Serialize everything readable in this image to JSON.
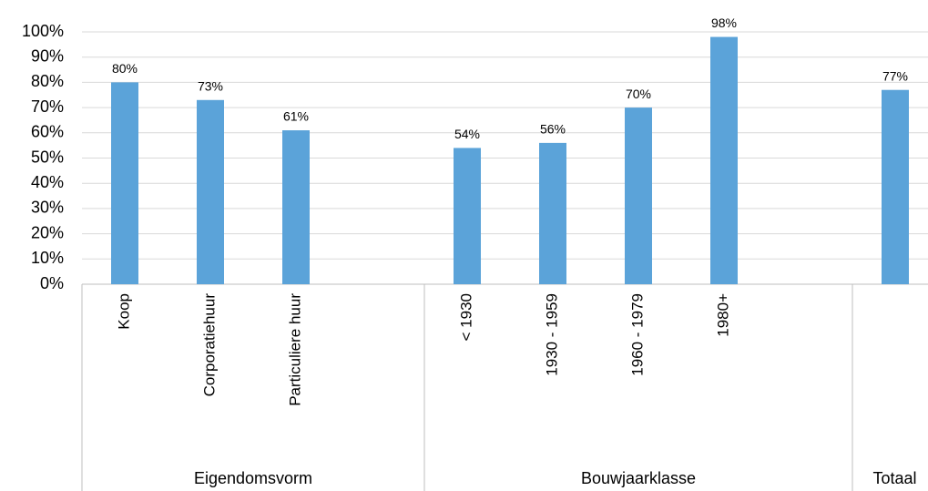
{
  "chart_data": {
    "type": "bar",
    "categories": [
      "Koop",
      "Corporatiehuur",
      "Particuliere huur",
      null,
      "< 1930",
      "1930 - 1959",
      "1960 - 1979",
      "1980+",
      null,
      null
    ],
    "values": [
      80,
      73,
      61,
      null,
      54,
      56,
      70,
      98,
      null,
      77
    ],
    "value_labels": [
      "80%",
      "73%",
      "61%",
      null,
      "54%",
      "56%",
      "70%",
      "98%",
      null,
      "77%"
    ],
    "groups": [
      {
        "name": "Eigendomsvorm",
        "count": 4
      },
      {
        "name": "Bouwjaarklasse",
        "count": 5
      },
      {
        "name": "Totaal",
        "count": 1
      }
    ],
    "color": "#5ba3d9",
    "ylim": [
      0,
      100
    ],
    "yticks": [
      {
        "value": 0,
        "label": "0%"
      },
      {
        "value": 10,
        "label": "10%"
      },
      {
        "value": 20,
        "label": "20%"
      },
      {
        "value": 30,
        "label": "30%"
      },
      {
        "value": 40,
        "label": "40%"
      },
      {
        "value": 50,
        "label": "50%"
      },
      {
        "value": 60,
        "label": "60%"
      },
      {
        "value": 70,
        "label": "70%"
      },
      {
        "value": 80,
        "label": "80%"
      },
      {
        "value": 90,
        "label": "90%"
      },
      {
        "value": 100,
        "label": "100%"
      }
    ],
    "grid": true
  }
}
